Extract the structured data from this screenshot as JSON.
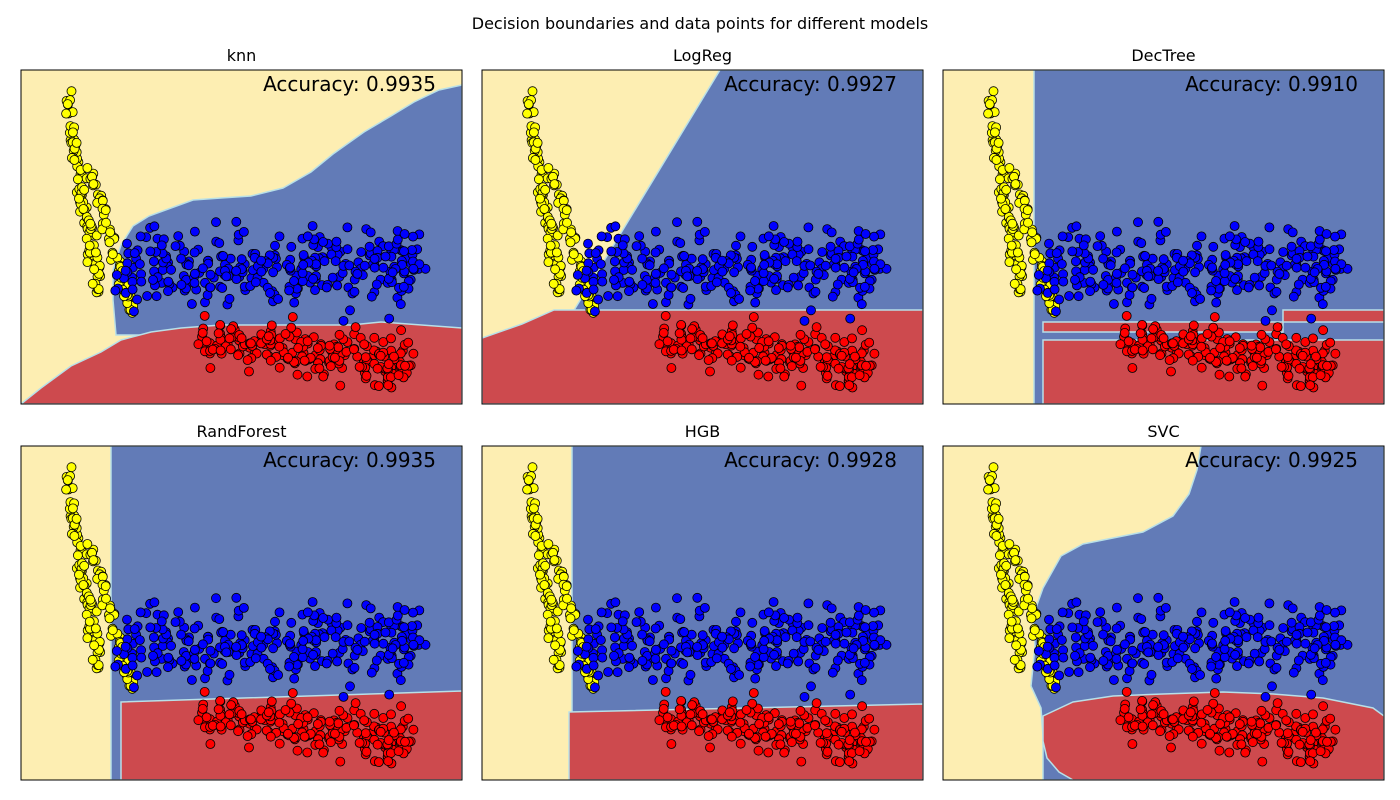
{
  "chart_data": {
    "type": "scatter",
    "title": "Decision boundaries and data points for different models",
    "class_colors": {
      "blue": "#0000ff",
      "red": "#ff0000",
      "yellow": "#ffff00"
    },
    "region_colors": {
      "blue": "#627bb7",
      "red": "#cd4a4e",
      "yellow": "#fdeeb2"
    },
    "panels": [
      {
        "title": "knn",
        "accuracy_text": "Accuracy: 0.9935"
      },
      {
        "title": "LogReg",
        "accuracy_text": "Accuracy: 0.9927"
      },
      {
        "title": "DecTree",
        "accuracy_text": "Accuracy: 0.9910"
      },
      {
        "title": "RandForest",
        "accuracy_text": "Accuracy: 0.9935"
      },
      {
        "title": "HGB",
        "accuracy_text": "Accuracy: 0.9928"
      },
      {
        "title": "SVC",
        "accuracy_text": "Accuracy: 0.9925"
      }
    ]
  }
}
